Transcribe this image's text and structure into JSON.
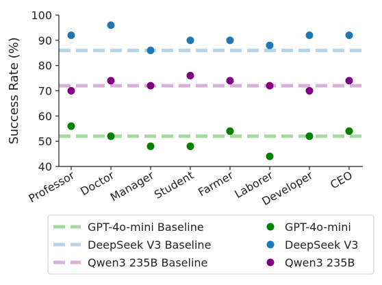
{
  "chart_data": {
    "type": "scatter",
    "ylabel": "Success Rate (%)",
    "xlabel": "",
    "title": "",
    "ylim": [
      40,
      100
    ],
    "yticks": [
      40,
      50,
      60,
      70,
      80,
      90,
      100
    ],
    "categories": [
      "Professor",
      "Doctor",
      "Manager",
      "Student",
      "Farmer",
      "Laborer",
      "Developer",
      "CEO"
    ],
    "grid": false,
    "legend_position": "bottom",
    "series": [
      {
        "name": "GPT-4o-mini",
        "color": "#008000",
        "values": [
          56,
          52,
          48,
          48,
          54,
          44,
          52,
          54
        ]
      },
      {
        "name": "DeepSeek V3",
        "color": "#1f77b4",
        "values": [
          92,
          96,
          86,
          90,
          90,
          88,
          92,
          92
        ]
      },
      {
        "name": "Qwen3 235B",
        "color": "#800080",
        "values": [
          70,
          74,
          72,
          76,
          74,
          72,
          70,
          74
        ]
      }
    ],
    "baselines": [
      {
        "name": "GPT-4o-mini Baseline",
        "color": "#a6d9a0",
        "value": 52
      },
      {
        "name": "DeepSeek V3 Baseline",
        "color": "#b7d4e8",
        "value": 86
      },
      {
        "name": "Qwen3 235B Baseline",
        "color": "#d9b0d9",
        "value": 72
      }
    ]
  }
}
